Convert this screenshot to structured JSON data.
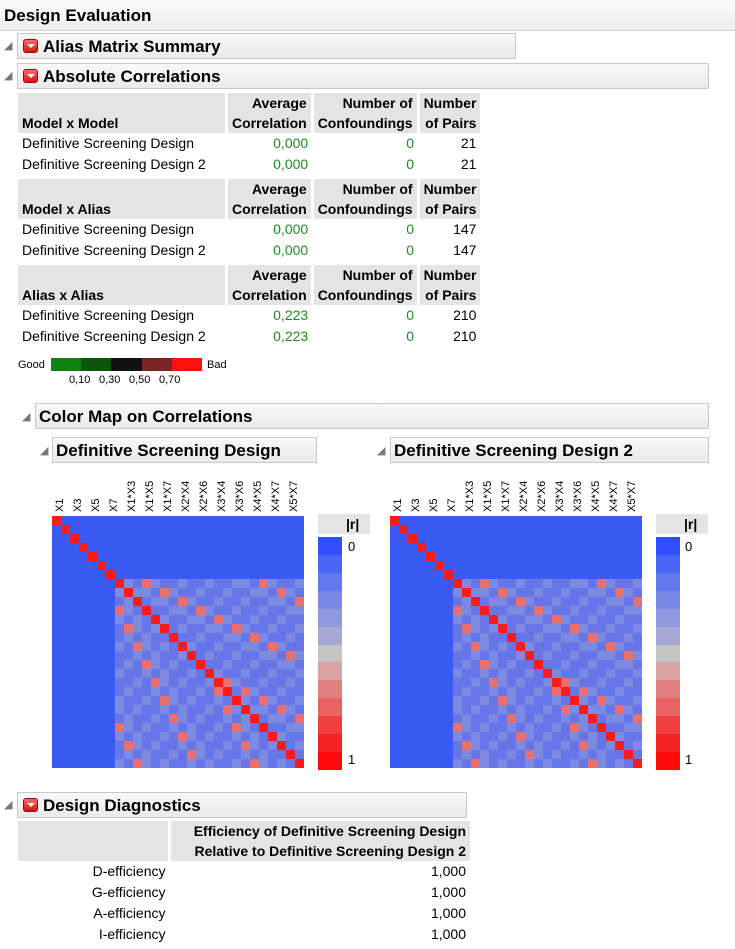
{
  "title": "Design Evaluation",
  "sections": {
    "alias_summary": "Alias Matrix Summary",
    "abs_corr": "Absolute Correlations",
    "color_map": "Color Map on Correlations",
    "diagnostics": "Design Diagnostics"
  },
  "corr_headers": {
    "avg_line1": "Average",
    "avg_line2": "Correlation",
    "conf_line1": "Number of",
    "conf_line2": "Confoundings",
    "pairs_line1": "Number",
    "pairs_line2": "of Pairs"
  },
  "corr_groups": [
    {
      "title": "Model x Model",
      "rows": [
        {
          "name": "Definitive Screening Design",
          "avg": "0,000",
          "conf": "0",
          "pairs": "21"
        },
        {
          "name": "Definitive Screening Design 2",
          "avg": "0,000",
          "conf": "0",
          "pairs": "21"
        }
      ]
    },
    {
      "title": "Model x Alias",
      "rows": [
        {
          "name": "Definitive Screening Design",
          "avg": "0,000",
          "conf": "0",
          "pairs": "147"
        },
        {
          "name": "Definitive Screening Design 2",
          "avg": "0,000",
          "conf": "0",
          "pairs": "147"
        }
      ]
    },
    {
      "title": "Alias x Alias",
      "rows": [
        {
          "name": "Definitive Screening Design",
          "avg": "0,223",
          "conf": "0",
          "pairs": "210"
        },
        {
          "name": "Definitive Screening Design 2",
          "avg": "0,223",
          "conf": "0",
          "pairs": "210"
        }
      ]
    }
  ],
  "legend": {
    "good": "Good",
    "bad": "Bad",
    "ticks": [
      "0,10",
      "0,30",
      "0,50",
      "0,70"
    ],
    "colors": [
      "#108010",
      "#0c560c",
      "#111111",
      "#7a2424",
      "#ff1010"
    ]
  },
  "color_maps": [
    {
      "title": "Definitive Screening Design"
    },
    {
      "title": "Definitive Screening Design 2"
    }
  ],
  "axis_labels": [
    "X1",
    "X3",
    "X5",
    "X7",
    "X1*X3",
    "X1*X5",
    "X1*X7",
    "X2*X4",
    "X2*X6",
    "X3*X4",
    "X3*X6",
    "X4*X5",
    "X4*X7",
    "X5*X7"
  ],
  "colorbar": {
    "title": "|r|",
    "min_label": "0",
    "max_label": "1",
    "colors": [
      "#3050ff",
      "#4a66f4",
      "#6278ee",
      "#7a89e6",
      "#8f99e0",
      "#a5a7d4",
      "#c4c4c4",
      "#d9a3a3",
      "#e07f7f",
      "#e86262",
      "#ee4040",
      "#f52424",
      "#ff0a0a"
    ]
  },
  "heat_colors": {
    "zero": "#3a5af4",
    "low": "#7d8ae2",
    "mid": "#6676e8",
    "high": "#e9706e",
    "one": "#ff1a1a"
  },
  "diagnostics": {
    "col_header_1": "Efficiency of Definitive Screening Design",
    "col_header_2": "Relative to Definitive Screening Design 2",
    "rows": [
      {
        "label": "D-efficiency",
        "value": "1,000"
      },
      {
        "label": "G-efficiency",
        "value": "1,000"
      },
      {
        "label": "A-efficiency",
        "value": "1,000"
      },
      {
        "label": "I-efficiency",
        "value": "1,000"
      }
    ]
  }
}
